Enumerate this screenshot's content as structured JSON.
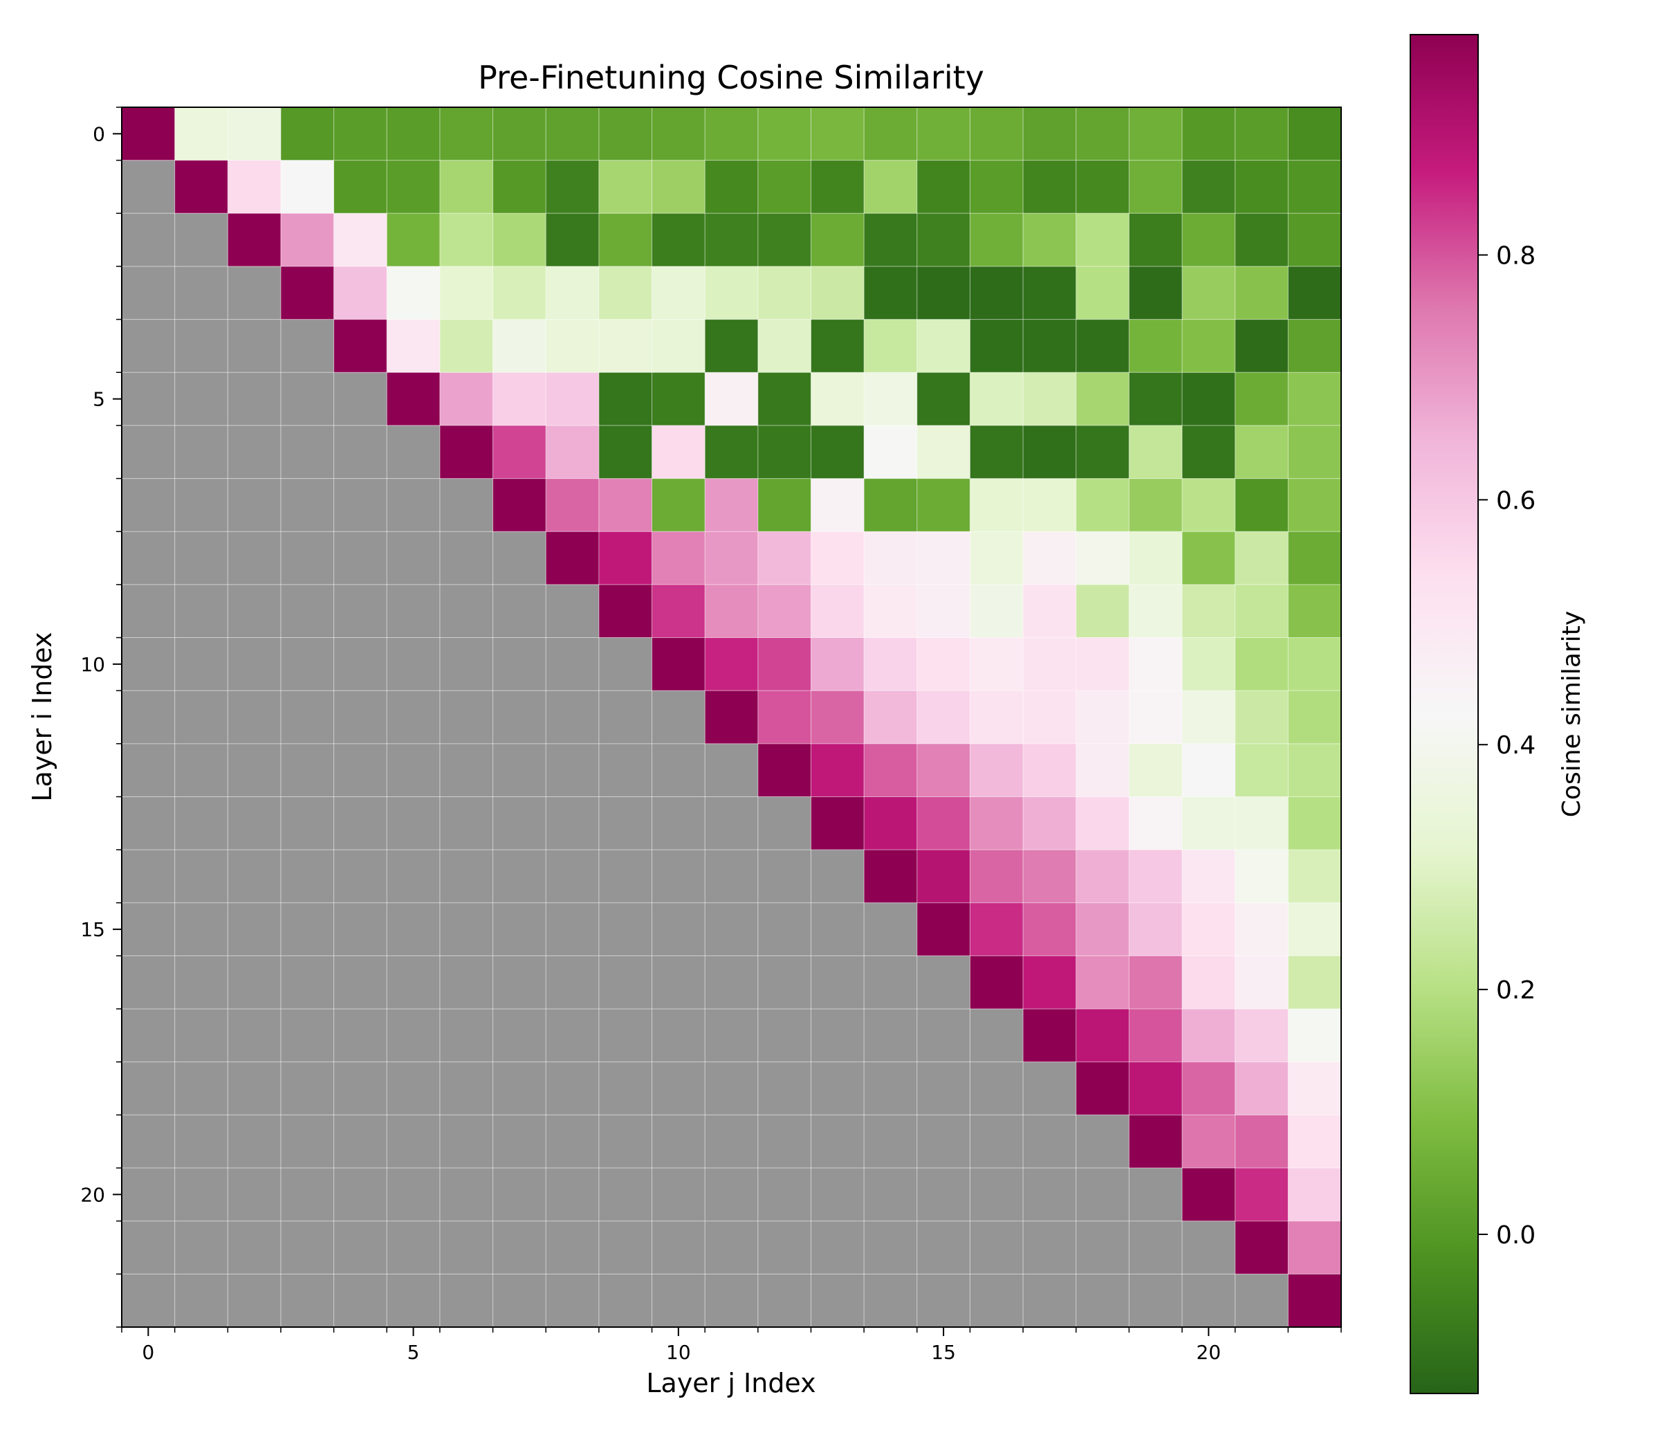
{
  "chart_data": {
    "type": "heatmap",
    "title": "Pre-Finetuning Cosine Similarity",
    "xlabel": "Layer j Index",
    "ylabel": "Layer i Index",
    "x_ticks": [
      "0",
      "5",
      "10",
      "15",
      "20"
    ],
    "y_ticks": [
      "0",
      "5",
      "10",
      "15",
      "20"
    ],
    "size": 23,
    "masked": "lower-triangle",
    "mask_color": "#959595",
    "colormap": "PiYG (green = low, pink = high)",
    "colorbar": {
      "label": "Cosine similarity",
      "range": [
        -0.13,
        0.98
      ],
      "ticks": [
        "0.0",
        "0.2",
        "0.4",
        "0.6",
        "0.8"
      ],
      "tick_values": [
        0.0,
        0.2,
        0.4,
        0.6,
        0.8
      ]
    },
    "values": [
      [
        0.98,
        0.35,
        0.36,
        0.0,
        0.01,
        0.01,
        0.03,
        0.02,
        0.02,
        0.02,
        0.03,
        0.05,
        0.07,
        0.08,
        0.05,
        0.06,
        0.05,
        0.02,
        0.03,
        0.06,
        0.0,
        0.01,
        -0.03
      ],
      [
        null,
        0.98,
        0.55,
        0.43,
        0.0,
        0.01,
        0.17,
        0.0,
        -0.06,
        0.17,
        0.15,
        -0.04,
        0.01,
        -0.05,
        0.16,
        -0.05,
        0.01,
        -0.05,
        -0.04,
        0.06,
        -0.06,
        -0.03,
        -0.01
      ],
      [
        null,
        null,
        0.98,
        0.7,
        0.5,
        0.07,
        0.22,
        0.18,
        -0.08,
        0.05,
        -0.07,
        -0.06,
        -0.06,
        0.05,
        -0.08,
        -0.06,
        0.06,
        0.12,
        0.2,
        -0.07,
        0.05,
        -0.07,
        0.0
      ],
      [
        null,
        null,
        null,
        0.98,
        0.62,
        0.41,
        0.32,
        0.28,
        0.33,
        0.27,
        0.33,
        0.29,
        0.27,
        0.25,
        -0.1,
        -0.11,
        -0.11,
        -0.1,
        0.2,
        -0.11,
        0.14,
        0.11,
        -0.11
      ],
      [
        null,
        null,
        null,
        null,
        0.98,
        0.5,
        0.27,
        0.38,
        0.34,
        0.34,
        0.33,
        -0.09,
        0.3,
        -0.09,
        0.24,
        0.29,
        -0.1,
        -0.1,
        -0.1,
        0.07,
        0.1,
        -0.11,
        0.02
      ],
      [
        null,
        null,
        null,
        null,
        null,
        0.98,
        0.68,
        0.58,
        0.6,
        -0.09,
        -0.07,
        0.46,
        -0.08,
        0.34,
        0.37,
        -0.09,
        0.29,
        0.27,
        0.17,
        -0.09,
        -0.1,
        0.05,
        0.12
      ],
      [
        null,
        null,
        null,
        null,
        null,
        null,
        0.98,
        0.82,
        0.66,
        -0.09,
        0.55,
        -0.08,
        -0.08,
        -0.09,
        0.42,
        0.34,
        -0.09,
        -0.1,
        -0.09,
        0.23,
        -0.09,
        0.16,
        0.12
      ],
      [
        null,
        null,
        null,
        null,
        null,
        null,
        null,
        0.98,
        0.78,
        0.74,
        0.05,
        0.7,
        0.03,
        0.45,
        0.03,
        0.05,
        0.32,
        0.32,
        0.2,
        0.14,
        0.21,
        -0.01,
        0.11
      ],
      [
        null,
        null,
        null,
        null,
        null,
        null,
        null,
        null,
        0.98,
        0.88,
        0.74,
        0.7,
        0.64,
        0.53,
        0.48,
        0.47,
        0.35,
        0.46,
        0.39,
        0.33,
        0.11,
        0.25,
        0.05
      ],
      [
        null,
        null,
        null,
        null,
        null,
        null,
        null,
        null,
        null,
        0.98,
        0.84,
        0.72,
        0.69,
        0.56,
        0.49,
        0.47,
        0.38,
        0.52,
        0.25,
        0.36,
        0.26,
        0.23,
        0.11
      ],
      [
        null,
        null,
        null,
        null,
        null,
        null,
        null,
        null,
        null,
        null,
        0.98,
        0.86,
        0.82,
        0.67,
        0.57,
        0.53,
        0.49,
        0.52,
        0.52,
        0.44,
        0.29,
        0.19,
        0.2
      ],
      [
        null,
        null,
        null,
        null,
        null,
        null,
        null,
        null,
        null,
        null,
        null,
        0.98,
        0.8,
        0.78,
        0.64,
        0.57,
        0.52,
        0.52,
        0.48,
        0.44,
        0.37,
        0.25,
        0.19
      ],
      [
        null,
        null,
        null,
        null,
        null,
        null,
        null,
        null,
        null,
        null,
        null,
        null,
        0.98,
        0.88,
        0.79,
        0.74,
        0.64,
        0.58,
        0.48,
        0.34,
        0.43,
        0.24,
        0.22
      ],
      [
        null,
        null,
        null,
        null,
        null,
        null,
        null,
        null,
        null,
        null,
        null,
        null,
        null,
        0.98,
        0.89,
        0.81,
        0.72,
        0.66,
        0.56,
        0.44,
        0.36,
        0.36,
        0.2
      ],
      [
        null,
        null,
        null,
        null,
        null,
        null,
        null,
        null,
        null,
        null,
        null,
        null,
        null,
        null,
        0.98,
        0.9,
        0.78,
        0.75,
        0.66,
        0.6,
        0.5,
        0.4,
        0.28
      ],
      [
        null,
        null,
        null,
        null,
        null,
        null,
        null,
        null,
        null,
        null,
        null,
        null,
        null,
        null,
        null,
        0.98,
        0.85,
        0.79,
        0.7,
        0.62,
        0.53,
        0.46,
        0.35
      ],
      [
        null,
        null,
        null,
        null,
        null,
        null,
        null,
        null,
        null,
        null,
        null,
        null,
        null,
        null,
        null,
        null,
        0.98,
        0.88,
        0.72,
        0.76,
        0.55,
        0.47,
        0.26
      ],
      [
        null,
        null,
        null,
        null,
        null,
        null,
        null,
        null,
        null,
        null,
        null,
        null,
        null,
        null,
        null,
        null,
        null,
        0.98,
        0.89,
        0.8,
        0.66,
        0.59,
        0.41
      ],
      [
        null,
        null,
        null,
        null,
        null,
        null,
        null,
        null,
        null,
        null,
        null,
        null,
        null,
        null,
        null,
        null,
        null,
        null,
        0.98,
        0.89,
        0.78,
        0.66,
        0.49
      ],
      [
        null,
        null,
        null,
        null,
        null,
        null,
        null,
        null,
        null,
        null,
        null,
        null,
        null,
        null,
        null,
        null,
        null,
        null,
        null,
        0.98,
        0.76,
        0.78,
        0.53
      ],
      [
        null,
        null,
        null,
        null,
        null,
        null,
        null,
        null,
        null,
        null,
        null,
        null,
        null,
        null,
        null,
        null,
        null,
        null,
        null,
        null,
        0.98,
        0.85,
        0.58
      ],
      [
        null,
        null,
        null,
        null,
        null,
        null,
        null,
        null,
        null,
        null,
        null,
        null,
        null,
        null,
        null,
        null,
        null,
        null,
        null,
        null,
        null,
        0.98,
        0.74
      ],
      [
        null,
        null,
        null,
        null,
        null,
        null,
        null,
        null,
        null,
        null,
        null,
        null,
        null,
        null,
        null,
        null,
        null,
        null,
        null,
        null,
        null,
        null,
        0.98
      ]
    ]
  }
}
